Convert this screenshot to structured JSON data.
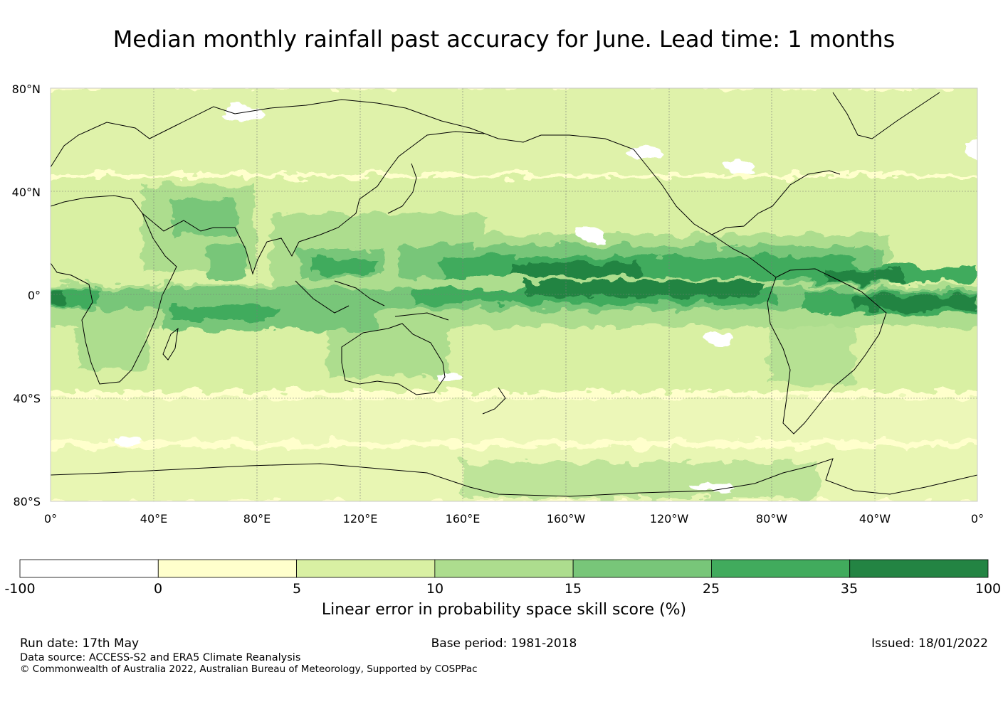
{
  "title": "Median monthly rainfall past accuracy for June. Lead time: 1 months",
  "map": {
    "lat_labels": [
      "80°N",
      "40°N",
      "0°",
      "40°S",
      "80°S"
    ],
    "lon_labels": [
      "0°",
      "40°E",
      "80°E",
      "120°E",
      "160°E",
      "160°W",
      "120°W",
      "80°W",
      "40°W",
      "0°"
    ],
    "colors": {
      "white": "#ffffff",
      "c0": "#ffffcc",
      "c5": "#d9f0a3",
      "c10": "#addd8e",
      "c15": "#78c679",
      "c25": "#41ab5d",
      "c35": "#238443"
    }
  },
  "colorbar": {
    "title": "Linear error in probability space skill score (%)",
    "ticks": [
      "-100",
      "0",
      "5",
      "10",
      "15",
      "25",
      "35",
      "100"
    ],
    "colors": [
      "#ffffff",
      "#ffffcc",
      "#d9f0a3",
      "#addd8e",
      "#78c679",
      "#41ab5d",
      "#238443"
    ]
  },
  "footer": {
    "run_date": "Run date: 17th May",
    "base_period": "Base period: 1981-2018",
    "issued": "Issued: 18/01/2022",
    "data_source": "Data source: ACCESS-S2 and ERA5 Climate Reanalysis",
    "copyright": "© Commonwealth of Australia 2022, Australian Bureau of Meteorology, Supported by COSPPac"
  }
}
